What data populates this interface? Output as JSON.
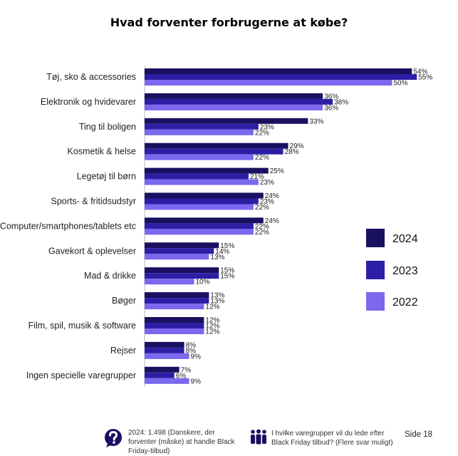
{
  "chart_data": {
    "type": "bar",
    "orientation": "horizontal",
    "title": "Hvad forventer forbrugerne at købe?",
    "categories": [
      "Tøj, sko & accessories",
      "Elektronik og hvidevarer",
      "Ting til boligen",
      "Kosmetik & helse",
      "Legetøj til børn",
      "Sports- & fritidsudstyr",
      "Computer/smartphones/tablets etc",
      "Gavekort & oplevelser",
      "Mad & drikke",
      "Bøger",
      "Film, spil, musik & software",
      "Rejser",
      "Ingen specielle varegrupper"
    ],
    "series": [
      {
        "name": "2024",
        "color": "#1a1060",
        "values": [
          54,
          36,
          33,
          29,
          25,
          24,
          24,
          15,
          15,
          13,
          12,
          8,
          7
        ]
      },
      {
        "name": "2023",
        "color": "#2c1fa6",
        "values": [
          55,
          38,
          23,
          28,
          21,
          23,
          22,
          14,
          15,
          13,
          12,
          8,
          6
        ]
      },
      {
        "name": "2022",
        "color": "#7b68ee",
        "values": [
          50,
          36,
          22,
          22,
          23,
          22,
          22,
          13,
          10,
          12,
          12,
          9,
          9
        ]
      }
    ],
    "value_suffix": "%",
    "xlim": [
      0,
      55
    ],
    "grid": false,
    "legend_position": "right"
  },
  "footer": {
    "respondents_text": "2024: 1.498 (Danskere, der forventer (måske) at handle Black Friday-tilbud)",
    "question_text": "I hvilke varegrupper vil du lede efter Black Friday tilbud? (Flere svar muligt)",
    "page_label": "Side 18"
  },
  "icons": {
    "respondents": "question-circle-icon",
    "question": "people-group-icon"
  }
}
